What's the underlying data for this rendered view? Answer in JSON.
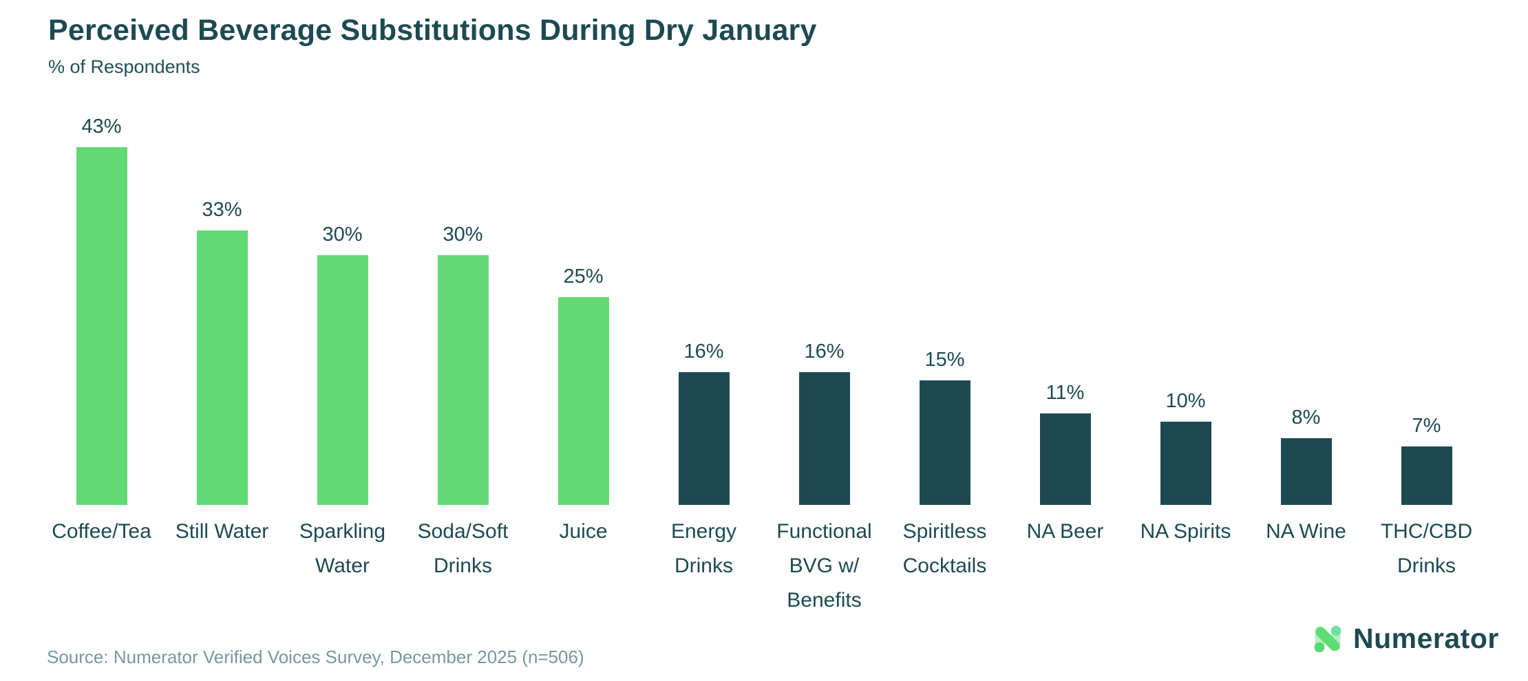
{
  "header": {
    "title": "Perceived Beverage Substitutions During Dry January",
    "subtitle": "% of Respondents"
  },
  "chart_data": {
    "type": "bar",
    "title": "Perceived Beverage Substitutions During Dry January",
    "ylabel": "% of Respondents",
    "xlabel": "",
    "unit": "%",
    "categories": [
      "Coffee/Tea",
      "Still Water",
      "Sparkling Water",
      "Soda/Soft Drinks",
      "Juice",
      "Energy Drinks",
      "Functional BVG w/ Benefits",
      "Spiritless Cocktails",
      "NA Beer",
      "NA Spirits",
      "NA Wine",
      "THC/CBD Drinks"
    ],
    "category_lines": [
      [
        "Coffee/Tea"
      ],
      [
        "Still Water"
      ],
      [
        "Sparkling",
        "Water"
      ],
      [
        "Soda/Soft",
        "Drinks"
      ],
      [
        "Juice"
      ],
      [
        "Energy",
        "Drinks"
      ],
      [
        "Functional",
        "BVG w/",
        "Benefits"
      ],
      [
        "Spiritless",
        "Cocktails"
      ],
      [
        "NA Beer"
      ],
      [
        "NA Spirits"
      ],
      [
        "NA Wine"
      ],
      [
        "THC/CBD",
        "Drinks"
      ]
    ],
    "values": [
      43,
      33,
      30,
      30,
      25,
      16,
      16,
      15,
      11,
      10,
      8,
      7
    ],
    "data_labels": [
      "43%",
      "33%",
      "30%",
      "30%",
      "25%",
      "16%",
      "16%",
      "15%",
      "11%",
      "10%",
      "8%",
      "7%"
    ],
    "bar_color_keys": [
      "green",
      "green",
      "green",
      "green",
      "green",
      "dark",
      "dark",
      "dark",
      "dark",
      "dark",
      "dark",
      "dark"
    ],
    "ylim": [
      0,
      45
    ],
    "grid": false,
    "axes_hidden": true,
    "legend": "none",
    "data_labels_position": "above-bars"
  },
  "colors": {
    "background": "#FFFFFF",
    "green": "#63D976",
    "dark": "#1D4A52",
    "title_text": "#1D4A52",
    "subtitle_text": "#215059",
    "label_text": "#1D4A52",
    "source_text": "#7797A1",
    "logo_green_bright": "#5EDC74",
    "logo_green_light": "#B5EFC0",
    "logo_green_dot": "#57D973",
    "logo_mint_dot": "#6FDFA2"
  },
  "footer": {
    "source": "Source: Numerator Verified Voices Survey, December 2025 (n=506)",
    "logo_text": "Numerator",
    "logo_icon": "numerator-n-icon"
  }
}
